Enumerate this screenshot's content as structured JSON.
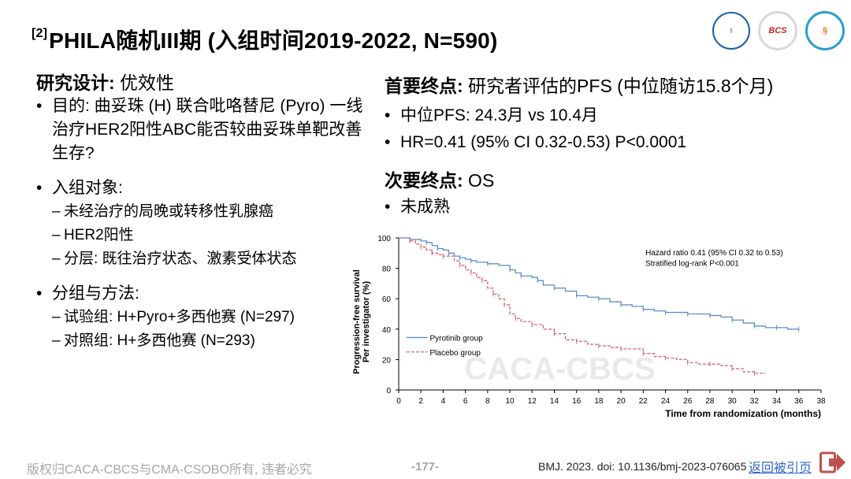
{
  "title": {
    "ref": "[2]",
    "text": "PHILA随机III期 (入组时间2019-2022, N=590)"
  },
  "logos": [
    "seal-logo",
    "BCS",
    "swirl-logo"
  ],
  "left": {
    "heading_bold": "研究设计:",
    "heading_rest": " 优效性",
    "bullets": [
      {
        "text": "目的: 曲妥珠 (H) 联合吡咯替尼 (Pyro) 一线治疗HER2阳性ABC能否较曲妥珠单靶改善生存?"
      },
      {
        "text": "入组对象:",
        "subs": [
          "未经治疗的局晚或转移性乳腺癌",
          "HER2阳性",
          "分层: 既往治疗状态、激素受体状态"
        ]
      },
      {
        "text": "分组与方法:",
        "subs": [
          "试验组: H+Pyro+多西他赛 (N=297)",
          "对照组: H+多西他赛 (N=293)"
        ]
      }
    ]
  },
  "right": {
    "primary_bold": "首要终点:",
    "primary_rest": " 研究者评估的PFS (中位随访15.8个月)",
    "primary_bullets": [
      "中位PFS: 24.3月 vs 10.4月",
      "HR=0.41 (95% CI 0.32-0.53) P<0.0001"
    ],
    "secondary_bold": "次要终点:",
    "secondary_rest": " OS",
    "secondary_bullets": [
      "未成熟"
    ]
  },
  "chart_data": {
    "type": "line",
    "ylabel_lines": [
      "Progression-free survival",
      "Per investigator (%)"
    ],
    "xlabel": "Time from randomization (months)",
    "xlim": [
      0,
      38
    ],
    "ylim": [
      0,
      100
    ],
    "xticks": [
      0,
      2,
      4,
      6,
      8,
      10,
      12,
      14,
      16,
      18,
      20,
      22,
      24,
      26,
      28,
      30,
      32,
      34,
      36,
      38
    ],
    "yticks": [
      0,
      20,
      40,
      60,
      80,
      100
    ],
    "annotation_lines": [
      "Hazard ratio 0.41 (95% CI 0.32 to 0.53)",
      "Stratified log-rank P<0.001"
    ],
    "watermark": "CACA-CBCS",
    "series": [
      {
        "name": "Pyrotinib group",
        "color": "#5b8fc9",
        "dash": false,
        "x": [
          0,
          1,
          2,
          2.5,
          3,
          3.5,
          4,
          4.5,
          5,
          5.5,
          6,
          6.5,
          7,
          8,
          9,
          10,
          10.5,
          11,
          12,
          12.5,
          13,
          14,
          15,
          16,
          17,
          18,
          19,
          20,
          21,
          22,
          23,
          24,
          25,
          26,
          27,
          28,
          29,
          30,
          31,
          32,
          33,
          34,
          35,
          36
        ],
        "y": [
          100,
          99,
          98,
          97,
          95,
          93,
          92,
          90,
          88,
          87,
          86,
          85,
          84,
          83,
          82,
          79,
          77,
          75,
          74,
          72,
          69,
          67,
          65,
          62,
          61,
          60,
          58,
          56,
          55,
          53,
          52,
          51,
          51,
          50,
          50,
          49,
          48,
          46,
          44,
          42,
          41,
          41,
          40,
          40
        ]
      },
      {
        "name": "Placebo group",
        "color": "#d9636b",
        "dash": true,
        "x": [
          0,
          1,
          1.5,
          2,
          2.5,
          3,
          3.5,
          4,
          5,
          5.5,
          6,
          6.5,
          7,
          7.5,
          8,
          8.5,
          9,
          9.5,
          10,
          10.5,
          11,
          12,
          13,
          14,
          15,
          16,
          17,
          18,
          19,
          20,
          21,
          22,
          23,
          24,
          25,
          26,
          27,
          28,
          29,
          30,
          31,
          32,
          33
        ],
        "y": [
          100,
          98,
          96,
          94,
          92,
          90,
          89,
          88,
          85,
          82,
          79,
          77,
          74,
          72,
          67,
          63,
          60,
          56,
          50,
          47,
          45,
          43,
          40,
          37,
          33,
          32,
          30,
          29,
          28,
          27,
          27,
          24,
          22,
          21,
          20,
          18,
          17,
          17,
          16,
          14,
          12,
          11,
          11
        ]
      }
    ]
  },
  "footer": {
    "copyright": "版权归CACA-CBCS与CMA-CSOBO所有, 违者必究",
    "page": "-177-",
    "reference": "BMJ. 2023. doi: 10.1136/bmj-2023-076065",
    "link": "返回被引页"
  }
}
